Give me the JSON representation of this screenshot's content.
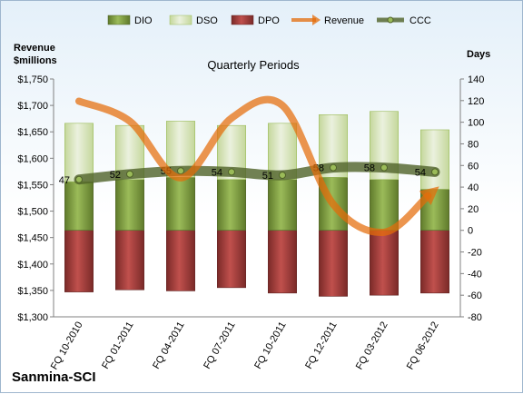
{
  "chart_data": {
    "type": "bar",
    "title": "Quarterly Periods",
    "company": "Sanmina-SCI",
    "left_axis_label": [
      "Revenue",
      "$millions"
    ],
    "right_axis_label": "Days",
    "categories": [
      "FQ 10-2010",
      "FQ 01-2011",
      "FQ 04-2011",
      "FQ 07-2011",
      "FQ 10-2011",
      "FQ 12-2011",
      "FQ 03-2012",
      "FQ 06-2012"
    ],
    "left_axis": {
      "min": 1300,
      "max": 1750,
      "step": 50,
      "format": "$"
    },
    "right_axis": {
      "min": -80,
      "max": 140,
      "step": 20
    },
    "series": [
      {
        "name": "DIO",
        "type": "stacked-bar",
        "axis": "right",
        "color": "#77933c",
        "values": [
          45,
          47,
          49,
          47,
          47,
          49,
          47,
          38
        ]
      },
      {
        "name": "DSO",
        "type": "stacked-bar",
        "axis": "right",
        "color": "#d7e4bd",
        "values": [
          54,
          50,
          52,
          50,
          52,
          58,
          63,
          55
        ]
      },
      {
        "name": "DPO",
        "type": "stacked-bar",
        "axis": "right",
        "color": "#953735",
        "values": [
          -57,
          -55,
          -56,
          -53,
          -58,
          -61,
          -60,
          -58
        ]
      },
      {
        "name": "Revenue",
        "type": "line",
        "axis": "left",
        "color": "#e46c0a",
        "values": [
          1708,
          1670,
          1563,
          1676,
          1700,
          1513,
          1460,
          1540
        ]
      },
      {
        "name": "CCC",
        "type": "line",
        "axis": "right",
        "color": "#4f6228",
        "values": [
          47,
          52,
          55,
          54,
          51,
          58,
          58,
          54
        ]
      }
    ],
    "legend": [
      "DIO",
      "DSO",
      "DPO",
      "Revenue",
      "CCC"
    ],
    "legend_position": "top",
    "grid": false
  }
}
